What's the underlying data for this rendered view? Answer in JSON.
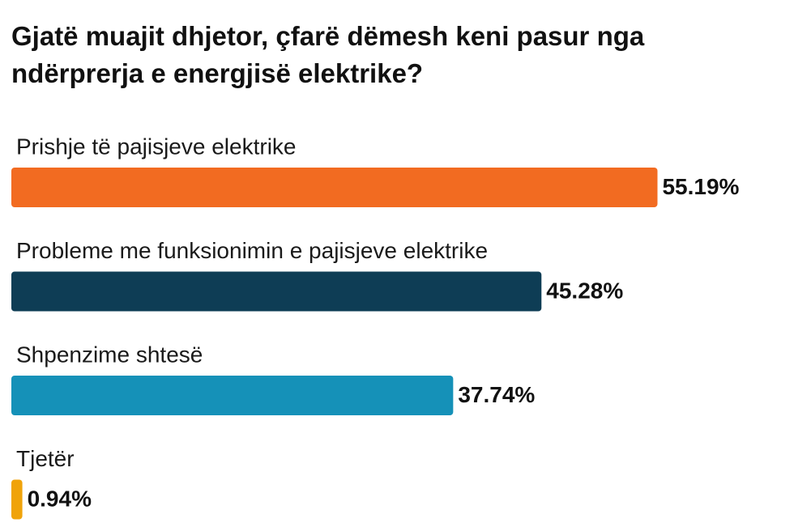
{
  "chart_data": {
    "type": "hbar",
    "title": "Gjatë muajit dhjetor, çfarë dëmesh keni pasur nga ndërprerja e energjisë elektrike?",
    "categories": [
      "Prishje të pajisjeve elektrike",
      "Probleme me funksionimin e pajisjeve elektrike",
      "Shpenzime shtesë",
      "Tjetër"
    ],
    "values": [
      55.19,
      45.28,
      37.74,
      0.94
    ],
    "value_labels": [
      "55.19%",
      "45.28%",
      "37.74%",
      "0.94%"
    ],
    "colors": [
      "#f26b21",
      "#0e3d55",
      "#1591b8",
      "#f0a30a"
    ]
  }
}
